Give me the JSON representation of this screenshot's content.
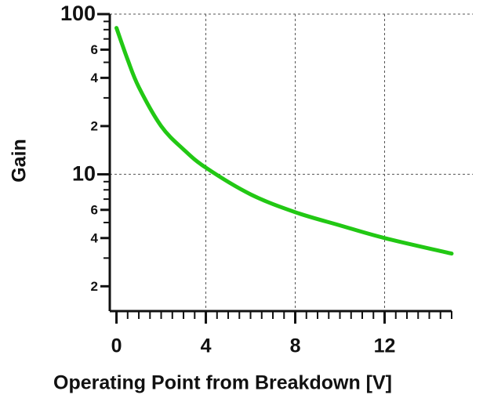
{
  "chart_data": {
    "type": "line",
    "x_label": "Operating Point from Breakdown [V]",
    "y_label": "Gain",
    "log_y": true,
    "grid": true,
    "x": [
      0,
      0.5,
      1,
      2,
      3,
      4,
      6,
      8,
      10,
      12,
      15
    ],
    "series": [
      {
        "name": "Gain",
        "color": "#22c814",
        "values": [
          82,
          52,
          35,
          20,
          14.3,
          11,
          7.5,
          5.8,
          4.8,
          4.0,
          3.2
        ]
      }
    ],
    "xlim": [
      -0.3,
      15
    ],
    "xticks": [
      0,
      4,
      8,
      12
    ],
    "xminor": [
      0.5,
      1,
      1.5,
      2,
      2.5,
      3,
      3.5,
      4.5,
      5,
      5.5,
      6,
      6.5,
      7,
      7.5,
      8.5,
      9,
      9.5,
      10,
      10.5,
      11,
      11.5,
      12.5,
      13,
      13.5,
      14,
      14.5,
      15
    ],
    "ylim": [
      1.4,
      100
    ],
    "yticks": [
      {
        "value": 2,
        "label": "2"
      },
      {
        "value": 4,
        "label": "4"
      },
      {
        "value": 6,
        "label": "6"
      },
      10,
      {
        "value": 20,
        "label": "2"
      },
      {
        "value": 40,
        "label": "4"
      },
      {
        "value": 60,
        "label": "6"
      },
      100
    ],
    "yminor": [
      3,
      5,
      7,
      8,
      9,
      30,
      50,
      70,
      80,
      90
    ],
    "ygrid": [
      10,
      100
    ]
  }
}
